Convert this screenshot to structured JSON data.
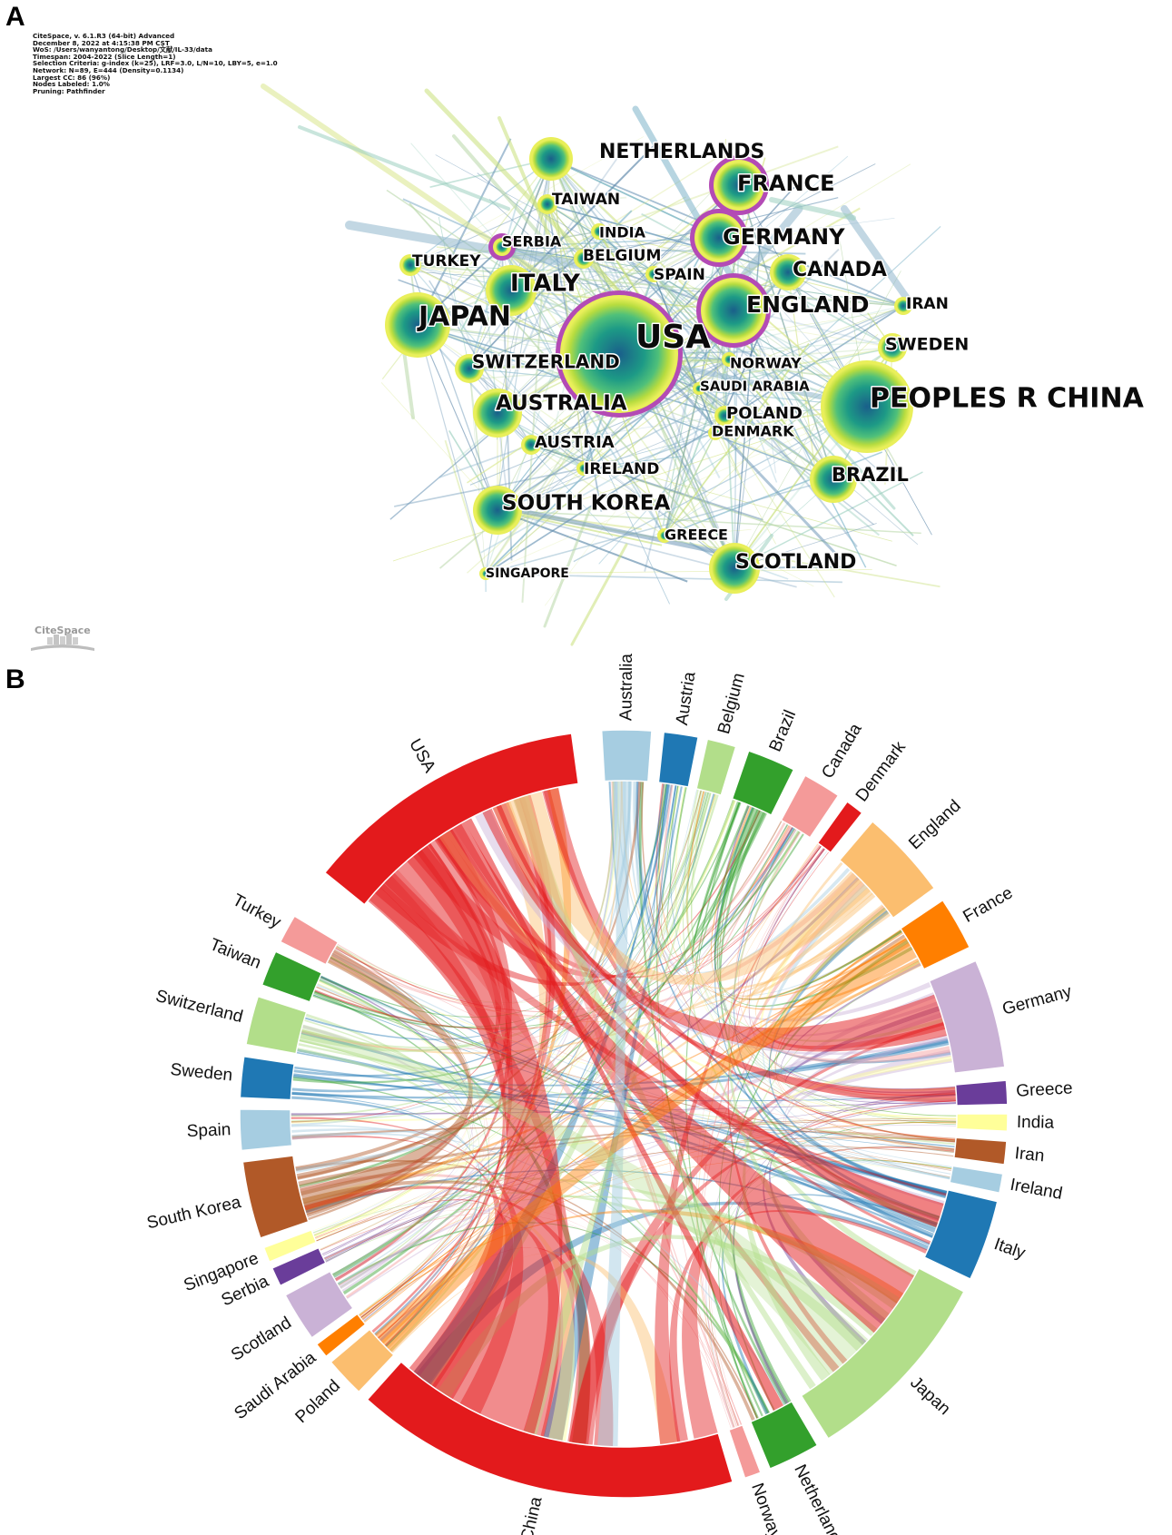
{
  "panel_a": {
    "letter": "A",
    "metadata": [
      "CiteSpace, v. 6.1.R3 (64-bit) Advanced",
      "December 8, 2022 at 4:15:38 PM CST",
      "WoS: /Users/wanyantong/Desktop/文献/IL-33/data",
      "Timespan: 2004-2022 (Slice Length=1)",
      "Selection Criteria: g-index (k=25), LRF=3.0, L/N=10, LBY=5, e=1.0",
      "Network: N=89, E=444 (Density=0.1134)",
      "Largest CC: 86 (96%)",
      "Nodes Labeled: 1.0%",
      "Pruning: Pathfinder"
    ],
    "logo_text": "CiteSpace",
    "nodes": [
      {
        "label": "NETHERLANDS",
        "size": "medium",
        "purple": false
      },
      {
        "label": "FRANCE",
        "size": "medium",
        "purple": true
      },
      {
        "label": "TAIWAN",
        "size": "small",
        "purple": false
      },
      {
        "label": "GERMANY",
        "size": "medium",
        "purple": true
      },
      {
        "label": "INDIA",
        "size": "small",
        "purple": false
      },
      {
        "label": "SERBIA",
        "size": "small",
        "purple": true
      },
      {
        "label": "BELGIUM",
        "size": "small",
        "purple": false
      },
      {
        "label": "CANADA",
        "size": "medium",
        "purple": false
      },
      {
        "label": "TURKEY",
        "size": "small",
        "purple": false
      },
      {
        "label": "SPAIN",
        "size": "small",
        "purple": false
      },
      {
        "label": "ITALY",
        "size": "medium",
        "purple": false
      },
      {
        "label": "ENGLAND",
        "size": "large",
        "purple": true
      },
      {
        "label": "IRAN",
        "size": "small",
        "purple": false
      },
      {
        "label": "JAPAN",
        "size": "large",
        "purple": false
      },
      {
        "label": "USA",
        "size": "xlarge",
        "purple": true
      },
      {
        "label": "SWEDEN",
        "size": "small",
        "purple": false
      },
      {
        "label": "SWITZERLAND",
        "size": "small",
        "purple": false
      },
      {
        "label": "NORWAY",
        "size": "small",
        "purple": false
      },
      {
        "label": "SAUDI ARABIA",
        "size": "small",
        "purple": false
      },
      {
        "label": "PEOPLES R CHINA",
        "size": "xlarge",
        "purple": false
      },
      {
        "label": "AUSTRALIA",
        "size": "medium",
        "purple": false
      },
      {
        "label": "POLAND",
        "size": "small",
        "purple": false
      },
      {
        "label": "DENMARK",
        "size": "small",
        "purple": false
      },
      {
        "label": "AUSTRIA",
        "size": "small",
        "purple": false
      },
      {
        "label": "IRELAND",
        "size": "small",
        "purple": false
      },
      {
        "label": "BRAZIL",
        "size": "medium",
        "purple": false
      },
      {
        "label": "SOUTH KOREA",
        "size": "medium",
        "purple": false
      },
      {
        "label": "GREECE",
        "size": "small",
        "purple": false
      },
      {
        "label": "SCOTLAND",
        "size": "medium",
        "purple": false
      },
      {
        "label": "SINGAPORE",
        "size": "small",
        "purple": false
      }
    ]
  },
  "panel_b": {
    "letter": "B",
    "segments": [
      {
        "label": "Australia",
        "color": "#a6cde1"
      },
      {
        "label": "Austria",
        "color": "#1f78b4"
      },
      {
        "label": "Belgium",
        "color": "#b2de8a"
      },
      {
        "label": "Brazil",
        "color": "#33a02c"
      },
      {
        "label": "Canada",
        "color": "#f49a99"
      },
      {
        "label": "Denmark",
        "color": "#e31a1c"
      },
      {
        "label": "England",
        "color": "#fbbe6f"
      },
      {
        "label": "France",
        "color": "#ff7f00"
      },
      {
        "label": "Germany",
        "color": "#cab2d6"
      },
      {
        "label": "Greece",
        "color": "#6a3d9a"
      },
      {
        "label": "India",
        "color": "#ffff99"
      },
      {
        "label": "Iran",
        "color": "#b15928"
      },
      {
        "label": "Ireland",
        "color": "#a6cde1"
      },
      {
        "label": "Italy",
        "color": "#1f78b4"
      },
      {
        "label": "Japan",
        "color": "#b2de8a"
      },
      {
        "label": "Netherlands",
        "color": "#33a02c"
      },
      {
        "label": "Norway",
        "color": "#f49a99"
      },
      {
        "label": "China",
        "color": "#e31a1c"
      },
      {
        "label": "Poland",
        "color": "#fbbe6f"
      },
      {
        "label": "Saudi Arabia",
        "color": "#ff7f00"
      },
      {
        "label": "Scotland",
        "color": "#cab2d6"
      },
      {
        "label": "Serbia",
        "color": "#6a3d9a"
      },
      {
        "label": "Singapore",
        "color": "#ffff99"
      },
      {
        "label": "South Korea",
        "color": "#b15928"
      },
      {
        "label": "Spain",
        "color": "#a6cde1"
      },
      {
        "label": "Sweden",
        "color": "#1f78b4"
      },
      {
        "label": "Switzerland",
        "color": "#b2de8a"
      },
      {
        "label": "Taiwan",
        "color": "#33a02c"
      },
      {
        "label": "Turkey",
        "color": "#f49a99"
      },
      {
        "label": "USA",
        "color": "#e31a1c"
      }
    ]
  }
}
